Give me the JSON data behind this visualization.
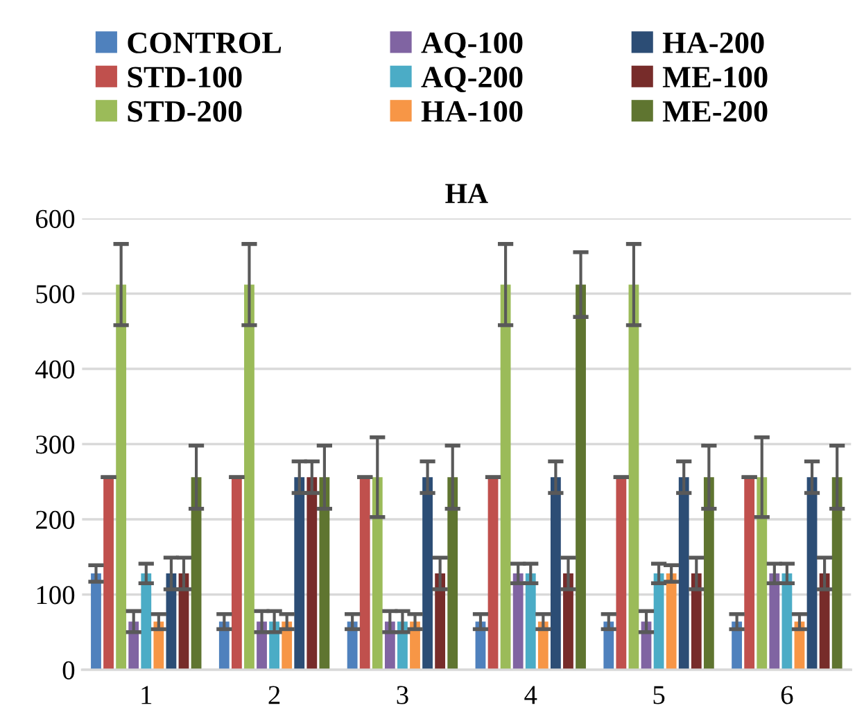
{
  "chart_data": {
    "type": "bar",
    "title": "HA",
    "categories": [
      "1",
      "2",
      "3",
      "4",
      "5",
      "6"
    ],
    "series": [
      {
        "name": "CONTROL",
        "color": "#4f81bd",
        "values": [
          128,
          64,
          64,
          64,
          64,
          64
        ],
        "errors": [
          11,
          10,
          10,
          10,
          10,
          10
        ]
      },
      {
        "name": "STD-100",
        "color": "#c0504d",
        "values": [
          256,
          256,
          256,
          256,
          256,
          256
        ],
        "errors": [
          0,
          0,
          0,
          0,
          0,
          0
        ]
      },
      {
        "name": "STD-200",
        "color": "#9bbb59",
        "values": [
          512,
          512,
          256,
          512,
          512,
          256
        ],
        "errors": [
          54,
          54,
          53,
          54,
          54,
          53
        ]
      },
      {
        "name": "AQ-100",
        "color": "#8064a2",
        "values": [
          64,
          64,
          64,
          128,
          64,
          128
        ],
        "errors": [
          14,
          14,
          14,
          13,
          14,
          13
        ]
      },
      {
        "name": "AQ-200",
        "color": "#4bacc6",
        "values": [
          128,
          64,
          64,
          128,
          128,
          128
        ],
        "errors": [
          13,
          14,
          14,
          13,
          13,
          13
        ]
      },
      {
        "name": "HA-100",
        "color": "#f79646",
        "values": [
          64,
          64,
          64,
          64,
          128,
          64
        ],
        "errors": [
          10,
          10,
          10,
          10,
          11,
          10
        ]
      },
      {
        "name": "HA-200",
        "color": "#2c4d75",
        "values": [
          128,
          256,
          256,
          256,
          256,
          256
        ],
        "errors": [
          21,
          21,
          21,
          21,
          21,
          21
        ]
      },
      {
        "name": "ME-100",
        "color": "#772c2a",
        "values": [
          128,
          256,
          128,
          128,
          128,
          128
        ],
        "errors": [
          21,
          21,
          21,
          21,
          21,
          21
        ]
      },
      {
        "name": "ME-200",
        "color": "#5f7530",
        "values": [
          256,
          256,
          256,
          512,
          256,
          256
        ],
        "errors": [
          42,
          42,
          42,
          43,
          42,
          42
        ]
      }
    ],
    "ylim": [
      0,
      600
    ],
    "yticks": [
      0,
      100,
      200,
      300,
      400,
      500,
      600
    ],
    "grid": "y",
    "legend": "top"
  }
}
